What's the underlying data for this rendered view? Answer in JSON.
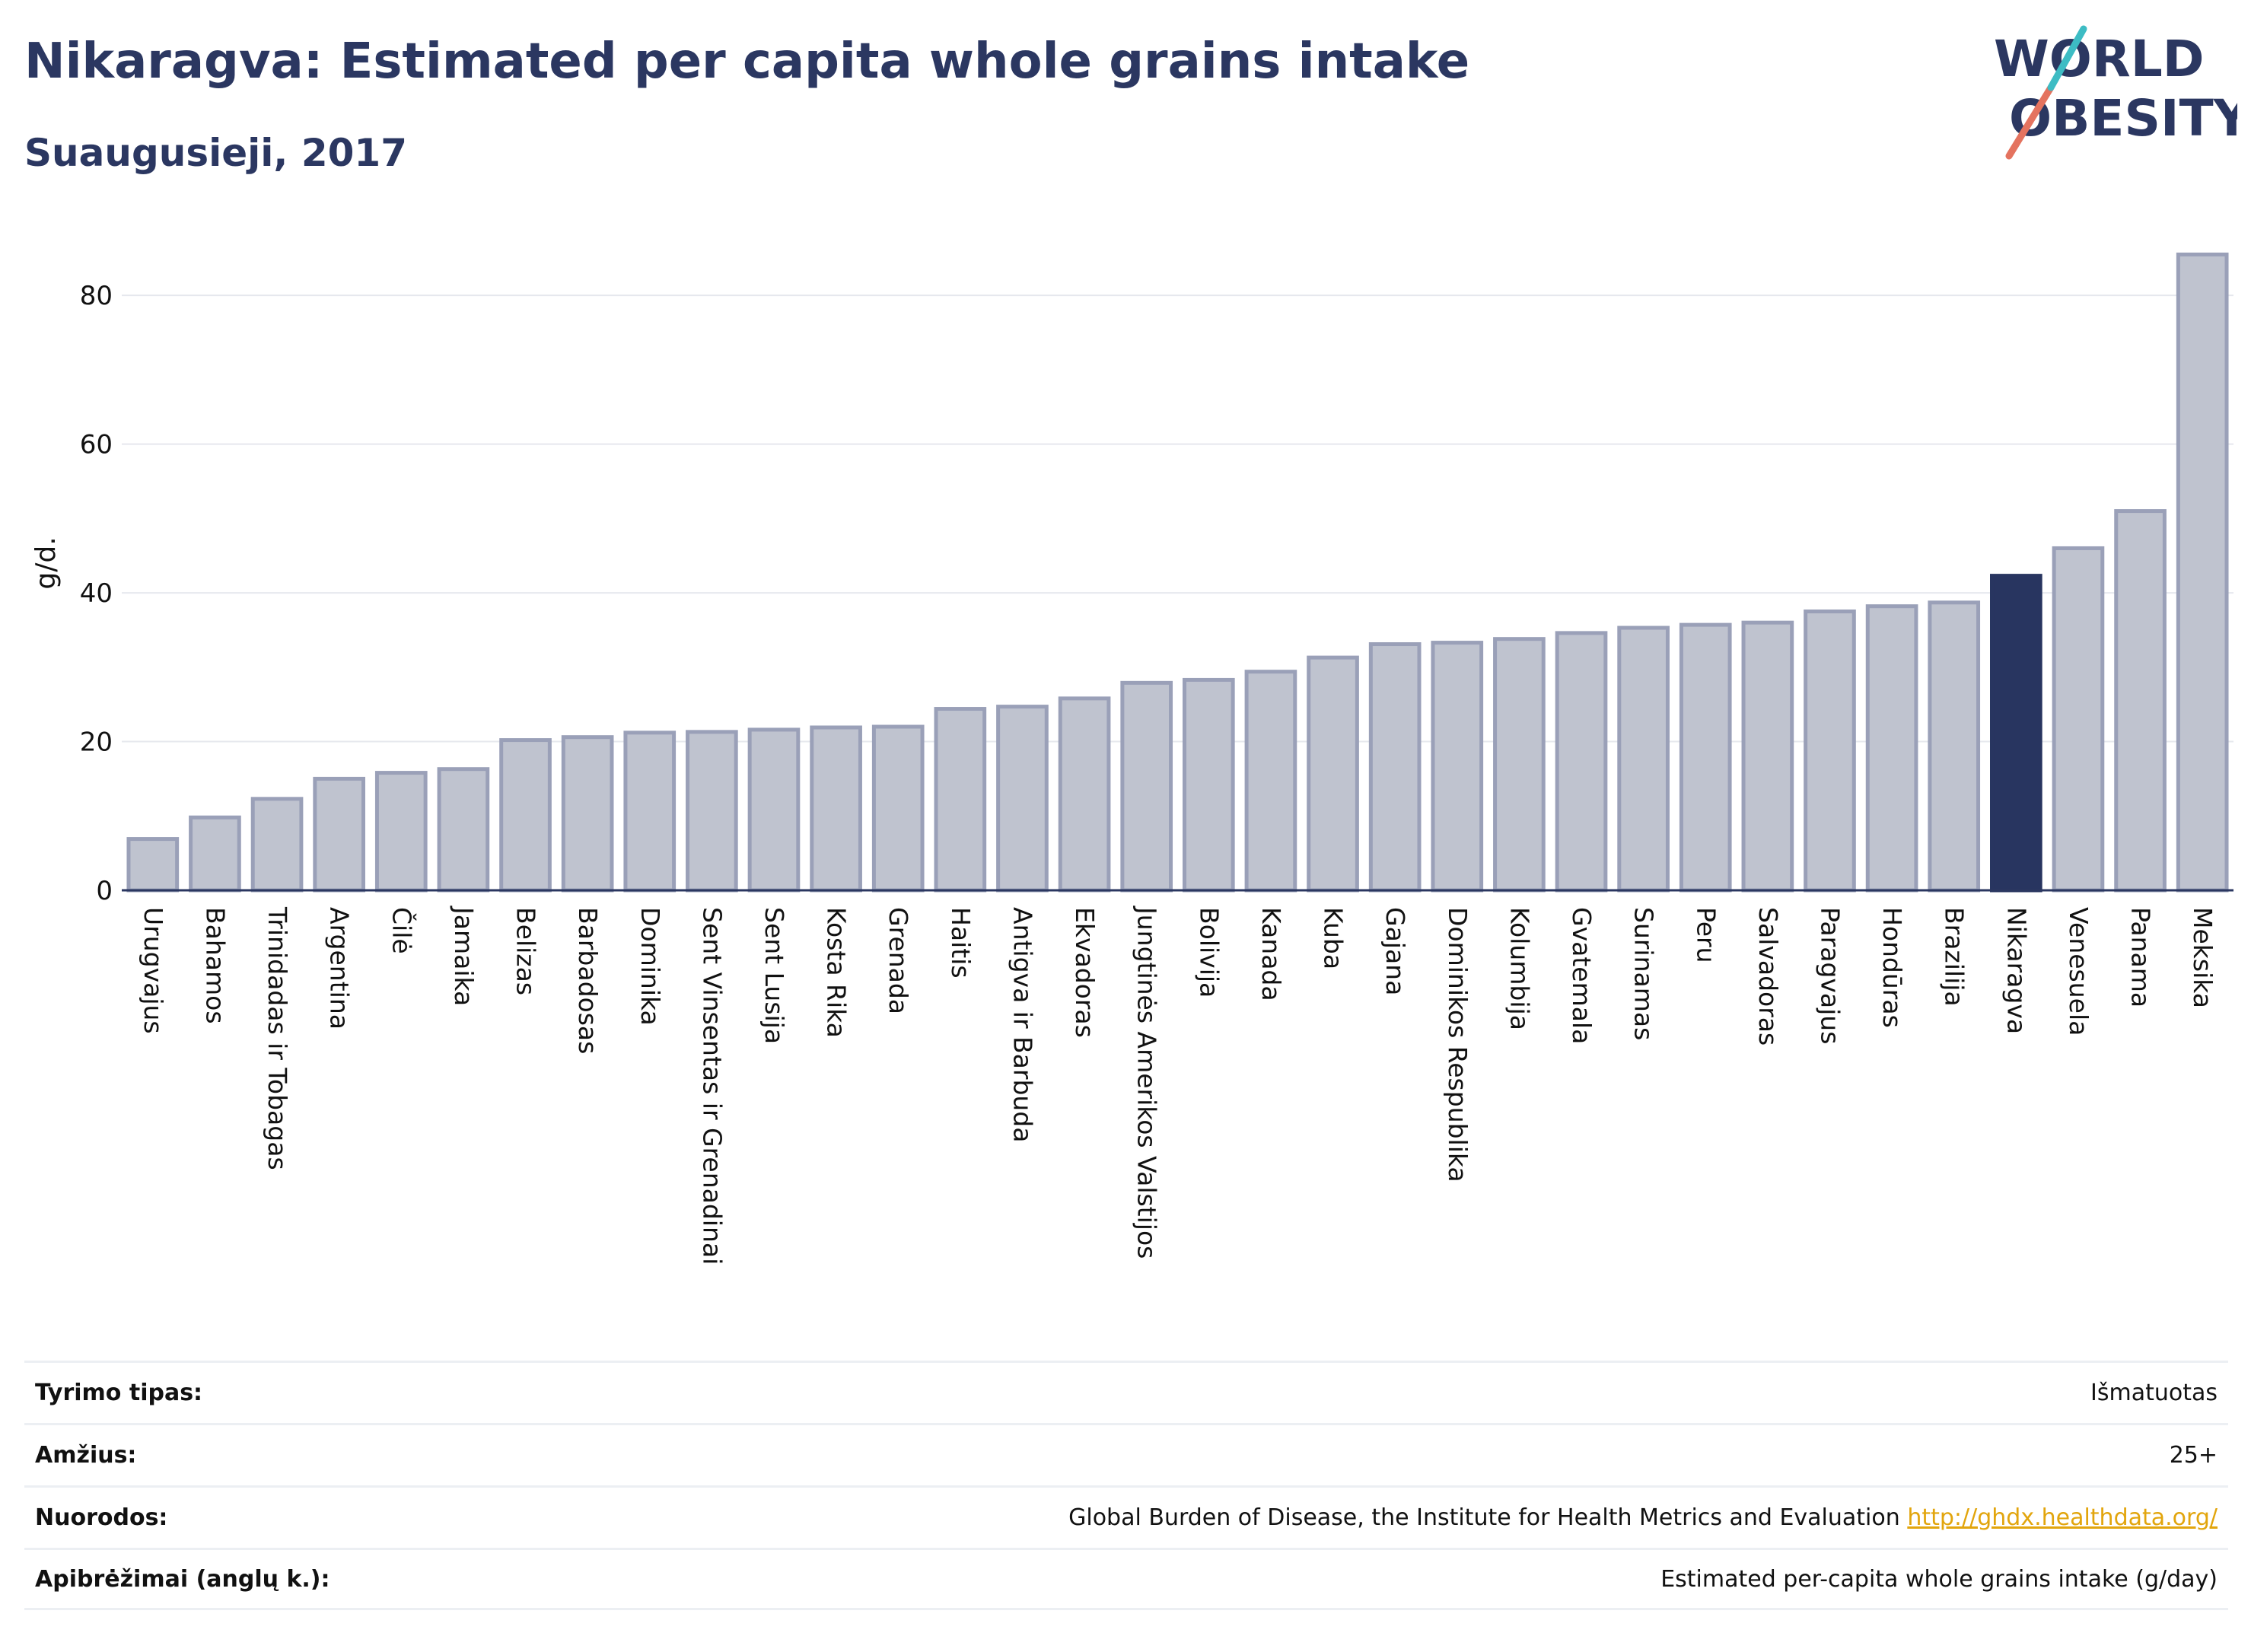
{
  "header": {
    "title": "Nikaragva: Estimated per capita whole grains intake",
    "subtitle": "Suaugusieji, 2017"
  },
  "logo": {
    "line1": "WORLD",
    "line2": "OBESITY"
  },
  "colors": {
    "highlight": "#283560",
    "bar": "#bfc3cf",
    "bar_edge": "#9aa0b8",
    "link": "#e2a50d"
  },
  "chart_data": {
    "type": "bar",
    "ylabel": "g/d.",
    "ylim": [
      0,
      88
    ],
    "yticks": [
      0,
      20,
      40,
      60,
      80
    ],
    "grid": true,
    "highlight": "Nikaragva",
    "categories": [
      "Urugvajus",
      "Bahamos",
      "Trinidadas ir Tobagas",
      "Argentina",
      "Čilė",
      "Jamaika",
      "Belizas",
      "Barbadosas",
      "Dominika",
      "Sent Vinsentas ir Grenadinai",
      "Sent Lusija",
      "Kosta Rika",
      "Grenada",
      "Haitis",
      "Antigva ir Barbuda",
      "Ekvadoras",
      "Jungtinės Amerikos Valstijos",
      "Bolivija",
      "Kanada",
      "Kuba",
      "Gajana",
      "Dominikos Respublika",
      "Kolumbija",
      "Gvatemala",
      "Surinamas",
      "Peru",
      "Salvadoras",
      "Paragvajus",
      "Hondūras",
      "Brazilija",
      "Nikaragva",
      "Venesuela",
      "Panama",
      "Meksika"
    ],
    "values": [
      6.9,
      9.8,
      12.3,
      15.0,
      15.8,
      16.3,
      20.2,
      20.6,
      21.2,
      21.3,
      21.6,
      21.9,
      22.0,
      24.4,
      24.7,
      25.8,
      27.9,
      28.3,
      29.4,
      31.3,
      33.1,
      33.3,
      33.8,
      34.6,
      35.3,
      35.7,
      36.0,
      37.5,
      38.2,
      38.7,
      42.3,
      46.0,
      51.0,
      85.5
    ]
  },
  "meta": {
    "rows": [
      {
        "label": "Tyrimo tipas:",
        "value": "Išmatuotas"
      },
      {
        "label": "Amžius:",
        "value": "25+"
      },
      {
        "label": "Nuorodos:",
        "value": "Global Burden of Disease, the Institute for Health Metrics and Evaluation",
        "link": "http://ghdx.healthdata.org/"
      },
      {
        "label": "Apibrėžimai (anglų k.):",
        "value": "Estimated per-capita whole grains intake (g/day)"
      }
    ]
  }
}
